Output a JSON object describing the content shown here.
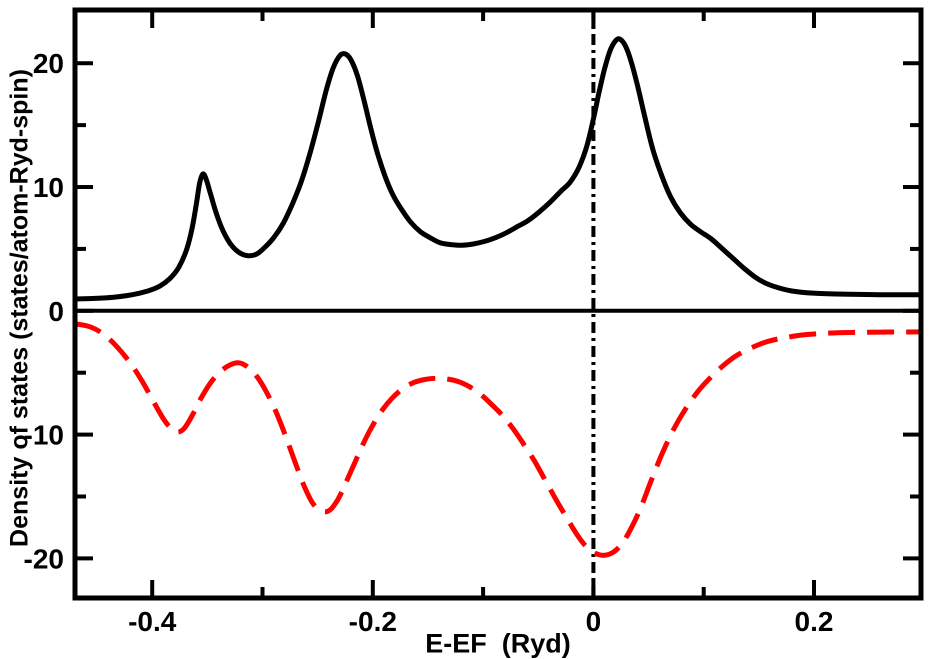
{
  "figure": {
    "background_color": "#ffffff",
    "axis_color": "#000000"
  },
  "chart_data": {
    "type": "line",
    "title": "",
    "xlabel": "E-EF  (Ryd)",
    "ylabel": "Density of states (states/atom-Ryd-spin)",
    "xlim": [
      -0.47,
      0.297
    ],
    "ylim": [
      -23.2,
      24.3
    ],
    "grid": false,
    "legend": "none",
    "x_ticks": {
      "major": [
        {
          "v": -0.4,
          "label": "-0.4"
        },
        {
          "v": -0.2,
          "label": "-0.2"
        },
        {
          "v": 0,
          "label": "0"
        },
        {
          "v": 0.2,
          "label": "0.2"
        }
      ],
      "minor": [
        -0.3,
        -0.1,
        0.1
      ]
    },
    "y_ticks": {
      "major": [
        {
          "v": -20,
          "label": "-20"
        },
        {
          "v": -10,
          "label": "-10"
        },
        {
          "v": 0,
          "label": "0"
        },
        {
          "v": 10,
          "label": "10"
        },
        {
          "v": 20,
          "label": "20"
        }
      ],
      "minor": [
        -15,
        -5,
        5,
        15
      ]
    },
    "reference_lines": {
      "zero_dos_line_y": 0,
      "fermi_level_x": 0,
      "fermi_line_style": "dash-dot",
      "zero_line_style": "solid"
    },
    "series": [
      {
        "name": "spin-up density of states",
        "line_style": "solid",
        "color": "#000000",
        "points": [
          [
            -0.47,
            0.95
          ],
          [
            -0.452,
            1.0
          ],
          [
            -0.435,
            1.1
          ],
          [
            -0.418,
            1.3
          ],
          [
            -0.404,
            1.6
          ],
          [
            -0.393,
            2.0
          ],
          [
            -0.384,
            2.6
          ],
          [
            -0.376,
            3.5
          ],
          [
            -0.369,
            4.9
          ],
          [
            -0.364,
            6.6
          ],
          [
            -0.36,
            8.6
          ],
          [
            -0.357,
            10.3
          ],
          [
            -0.354,
            11.05
          ],
          [
            -0.351,
            10.6
          ],
          [
            -0.347,
            9.4
          ],
          [
            -0.342,
            7.9
          ],
          [
            -0.336,
            6.5
          ],
          [
            -0.329,
            5.4
          ],
          [
            -0.321,
            4.7
          ],
          [
            -0.313,
            4.45
          ],
          [
            -0.305,
            4.6
          ],
          [
            -0.297,
            5.2
          ],
          [
            -0.289,
            6.0
          ],
          [
            -0.281,
            7.1
          ],
          [
            -0.273,
            8.6
          ],
          [
            -0.265,
            10.4
          ],
          [
            -0.257,
            12.7
          ],
          [
            -0.249,
            15.4
          ],
          [
            -0.242,
            17.9
          ],
          [
            -0.236,
            19.6
          ],
          [
            -0.23,
            20.6
          ],
          [
            -0.225,
            20.75
          ],
          [
            -0.22,
            20.3
          ],
          [
            -0.214,
            19.0
          ],
          [
            -0.208,
            17.0
          ],
          [
            -0.202,
            14.8
          ],
          [
            -0.196,
            12.8
          ],
          [
            -0.189,
            10.9
          ],
          [
            -0.182,
            9.4
          ],
          [
            -0.174,
            8.2
          ],
          [
            -0.166,
            7.2
          ],
          [
            -0.157,
            6.4
          ],
          [
            -0.148,
            5.9
          ],
          [
            -0.139,
            5.5
          ],
          [
            -0.129,
            5.35
          ],
          [
            -0.119,
            5.3
          ],
          [
            -0.109,
            5.4
          ],
          [
            -0.099,
            5.6
          ],
          [
            -0.089,
            5.9
          ],
          [
            -0.079,
            6.3
          ],
          [
            -0.069,
            6.8
          ],
          [
            -0.059,
            7.3
          ],
          [
            -0.049,
            8.0
          ],
          [
            -0.039,
            8.8
          ],
          [
            -0.029,
            9.7
          ],
          [
            -0.021,
            10.4
          ],
          [
            -0.013,
            11.6
          ],
          [
            -0.006,
            13.3
          ],
          [
            0.0,
            15.5
          ],
          [
            0.005,
            17.6
          ],
          [
            0.01,
            19.5
          ],
          [
            0.015,
            21.0
          ],
          [
            0.02,
            21.8
          ],
          [
            0.024,
            21.95
          ],
          [
            0.029,
            21.4
          ],
          [
            0.034,
            20.2
          ],
          [
            0.04,
            18.2
          ],
          [
            0.047,
            15.5
          ],
          [
            0.054,
            13.0
          ],
          [
            0.062,
            10.9
          ],
          [
            0.07,
            9.2
          ],
          [
            0.079,
            7.9
          ],
          [
            0.088,
            7.0
          ],
          [
            0.097,
            6.4
          ],
          [
            0.107,
            5.8
          ],
          [
            0.117,
            5.0
          ],
          [
            0.127,
            4.2
          ],
          [
            0.137,
            3.4
          ],
          [
            0.147,
            2.7
          ],
          [
            0.157,
            2.2
          ],
          [
            0.168,
            1.85
          ],
          [
            0.18,
            1.6
          ],
          [
            0.195,
            1.45
          ],
          [
            0.212,
            1.37
          ],
          [
            0.232,
            1.33
          ],
          [
            0.26,
            1.3
          ],
          [
            0.297,
            1.3
          ]
        ]
      },
      {
        "name": "spin-down density of states",
        "line_style": "dashed",
        "color": "#ff0000",
        "points": [
          [
            -0.47,
            -1.05
          ],
          [
            -0.456,
            -1.3
          ],
          [
            -0.444,
            -1.9
          ],
          [
            -0.432,
            -2.9
          ],
          [
            -0.42,
            -4.2
          ],
          [
            -0.409,
            -5.7
          ],
          [
            -0.399,
            -7.3
          ],
          [
            -0.39,
            -8.7
          ],
          [
            -0.383,
            -9.5
          ],
          [
            -0.377,
            -9.8
          ],
          [
            -0.371,
            -9.5
          ],
          [
            -0.364,
            -8.5
          ],
          [
            -0.356,
            -7.1
          ],
          [
            -0.347,
            -5.8
          ],
          [
            -0.338,
            -4.9
          ],
          [
            -0.33,
            -4.4
          ],
          [
            -0.322,
            -4.2
          ],
          [
            -0.314,
            -4.5
          ],
          [
            -0.306,
            -5.2
          ],
          [
            -0.298,
            -6.3
          ],
          [
            -0.289,
            -7.9
          ],
          [
            -0.28,
            -9.9
          ],
          [
            -0.271,
            -12.1
          ],
          [
            -0.262,
            -14.2
          ],
          [
            -0.254,
            -15.6
          ],
          [
            -0.246,
            -16.2
          ],
          [
            -0.239,
            -16.1
          ],
          [
            -0.232,
            -15.3
          ],
          [
            -0.225,
            -14.0
          ],
          [
            -0.217,
            -12.4
          ],
          [
            -0.209,
            -10.8
          ],
          [
            -0.201,
            -9.4
          ],
          [
            -0.192,
            -8.1
          ],
          [
            -0.183,
            -7.1
          ],
          [
            -0.173,
            -6.3
          ],
          [
            -0.163,
            -5.8
          ],
          [
            -0.153,
            -5.55
          ],
          [
            -0.143,
            -5.45
          ],
          [
            -0.133,
            -5.5
          ],
          [
            -0.123,
            -5.7
          ],
          [
            -0.113,
            -6.1
          ],
          [
            -0.103,
            -6.7
          ],
          [
            -0.093,
            -7.5
          ],
          [
            -0.083,
            -8.4
          ],
          [
            -0.073,
            -9.5
          ],
          [
            -0.063,
            -10.8
          ],
          [
            -0.053,
            -12.2
          ],
          [
            -0.043,
            -13.8
          ],
          [
            -0.033,
            -15.4
          ],
          [
            -0.023,
            -16.9
          ],
          [
            -0.014,
            -18.2
          ],
          [
            -0.006,
            -19.1
          ],
          [
            0.002,
            -19.6
          ],
          [
            0.01,
            -19.75
          ],
          [
            0.018,
            -19.5
          ],
          [
            0.026,
            -18.8
          ],
          [
            0.034,
            -17.6
          ],
          [
            0.043,
            -15.9
          ],
          [
            0.052,
            -13.8
          ],
          [
            0.062,
            -11.6
          ],
          [
            0.072,
            -9.7
          ],
          [
            0.083,
            -8.0
          ],
          [
            0.094,
            -6.6
          ],
          [
            0.106,
            -5.4
          ],
          [
            0.118,
            -4.4
          ],
          [
            0.13,
            -3.6
          ],
          [
            0.143,
            -3.0
          ],
          [
            0.157,
            -2.5
          ],
          [
            0.172,
            -2.2
          ],
          [
            0.19,
            -1.95
          ],
          [
            0.21,
            -1.82
          ],
          [
            0.232,
            -1.75
          ],
          [
            0.26,
            -1.72
          ],
          [
            0.297,
            -1.7
          ]
        ]
      }
    ]
  }
}
